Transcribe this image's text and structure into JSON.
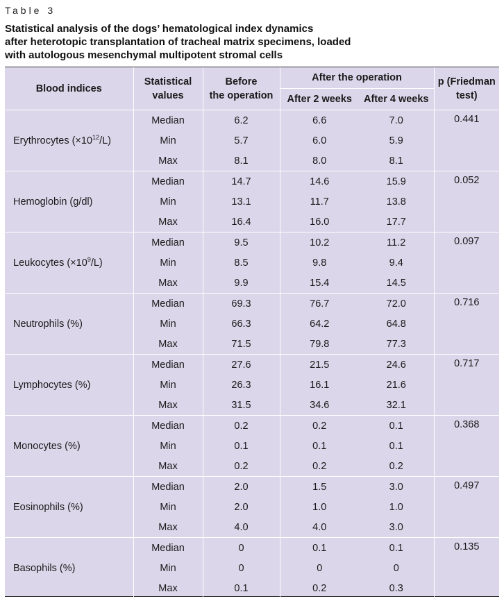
{
  "table_label": "Table 3",
  "caption": [
    "Statistical analysis of the dogs’ hematological index dynamics",
    "after heterotopic transplantation of tracheal matrix specimens, loaded",
    "with autologous mesenchymal multipotent stromal cells"
  ],
  "header": {
    "blood_indices": "Blood indices",
    "statistical_values_1": "Statistical",
    "statistical_values_2": "values",
    "before_1": "Before",
    "before_2": "the operation",
    "after_group": "After the operation",
    "after_2w": "After 2 weeks",
    "after_4w": "After 4 weeks",
    "p_1": "p (Friedman",
    "p_2": "test)"
  },
  "rows": [
    {
      "index": "Erythrocytes (×10",
      "index_sup": "12",
      "index_tail": "/L)",
      "p": "0.441",
      "stats": [
        {
          "name": "Median",
          "before": "6.2",
          "w2": "6.6",
          "w4": "7.0"
        },
        {
          "name": "Min",
          "before": "5.7",
          "w2": "6.0",
          "w4": "5.9"
        },
        {
          "name": "Max",
          "before": "8.1",
          "w2": "8.0",
          "w4": "8.1"
        }
      ]
    },
    {
      "index": "Hemoglobin (g/dl)",
      "index_sup": "",
      "index_tail": "",
      "p": "0.052",
      "stats": [
        {
          "name": "Median",
          "before": "14.7",
          "w2": "14.6",
          "w4": "15.9"
        },
        {
          "name": "Min",
          "before": "13.1",
          "w2": "11.7",
          "w4": "13.8"
        },
        {
          "name": "Max",
          "before": "16.4",
          "w2": "16.0",
          "w4": "17.7"
        }
      ]
    },
    {
      "index": "Leukocytes (×10",
      "index_sup": "9",
      "index_tail": "/L)",
      "p": "0.097",
      "stats": [
        {
          "name": "Median",
          "before": "9.5",
          "w2": "10.2",
          "w4": "11.2"
        },
        {
          "name": "Min",
          "before": "8.5",
          "w2": "9.8",
          "w4": "9.4"
        },
        {
          "name": "Max",
          "before": "9.9",
          "w2": "15.4",
          "w4": "14.5"
        }
      ]
    },
    {
      "index": "Neutrophils (%)",
      "index_sup": "",
      "index_tail": "",
      "p": "0.716",
      "stats": [
        {
          "name": "Median",
          "before": "69.3",
          "w2": "76.7",
          "w4": "72.0"
        },
        {
          "name": "Min",
          "before": "66.3",
          "w2": "64.2",
          "w4": "64.8"
        },
        {
          "name": "Max",
          "before": "71.5",
          "w2": "79.8",
          "w4": "77.3"
        }
      ]
    },
    {
      "index": "Lymphocytes (%)",
      "index_sup": "",
      "index_tail": "",
      "p": "0.717",
      "stats": [
        {
          "name": "Median",
          "before": "27.6",
          "w2": "21.5",
          "w4": "24.6"
        },
        {
          "name": "Min",
          "before": "26.3",
          "w2": "16.1",
          "w4": "21.6"
        },
        {
          "name": "Max",
          "before": "31.5",
          "w2": "34.6",
          "w4": "32.1"
        }
      ]
    },
    {
      "index": "Monocytes (%)",
      "index_sup": "",
      "index_tail": "",
      "p": "0.368",
      "stats": [
        {
          "name": "Median",
          "before": "0.2",
          "w2": "0.2",
          "w4": "0.1"
        },
        {
          "name": "Min",
          "before": "0.1",
          "w2": "0.1",
          "w4": "0.1"
        },
        {
          "name": "Max",
          "before": "0.2",
          "w2": "0.2",
          "w4": "0.2"
        }
      ]
    },
    {
      "index": "Eosinophils (%)",
      "index_sup": "",
      "index_tail": "",
      "p": "0.497",
      "stats": [
        {
          "name": "Median",
          "before": "2.0",
          "w2": "1.5",
          "w4": "3.0"
        },
        {
          "name": "Min",
          "before": "2.0",
          "w2": "1.0",
          "w4": "1.0"
        },
        {
          "name": "Max",
          "before": "4.0",
          "w2": "4.0",
          "w4": "3.0"
        }
      ]
    },
    {
      "index": "Basophils (%)",
      "index_sup": "",
      "index_tail": "",
      "p": "0.135",
      "stats": [
        {
          "name": "Median",
          "before": "0",
          "w2": "0.1",
          "w4": "0.1"
        },
        {
          "name": "Min",
          "before": "0",
          "w2": "0",
          "w4": "0"
        },
        {
          "name": "Max",
          "before": "0.1",
          "w2": "0.2",
          "w4": "0.3"
        }
      ]
    }
  ],
  "colors": {
    "table_background": "#dcd6ea",
    "separator": "#ffffff",
    "rule": "#333333"
  }
}
